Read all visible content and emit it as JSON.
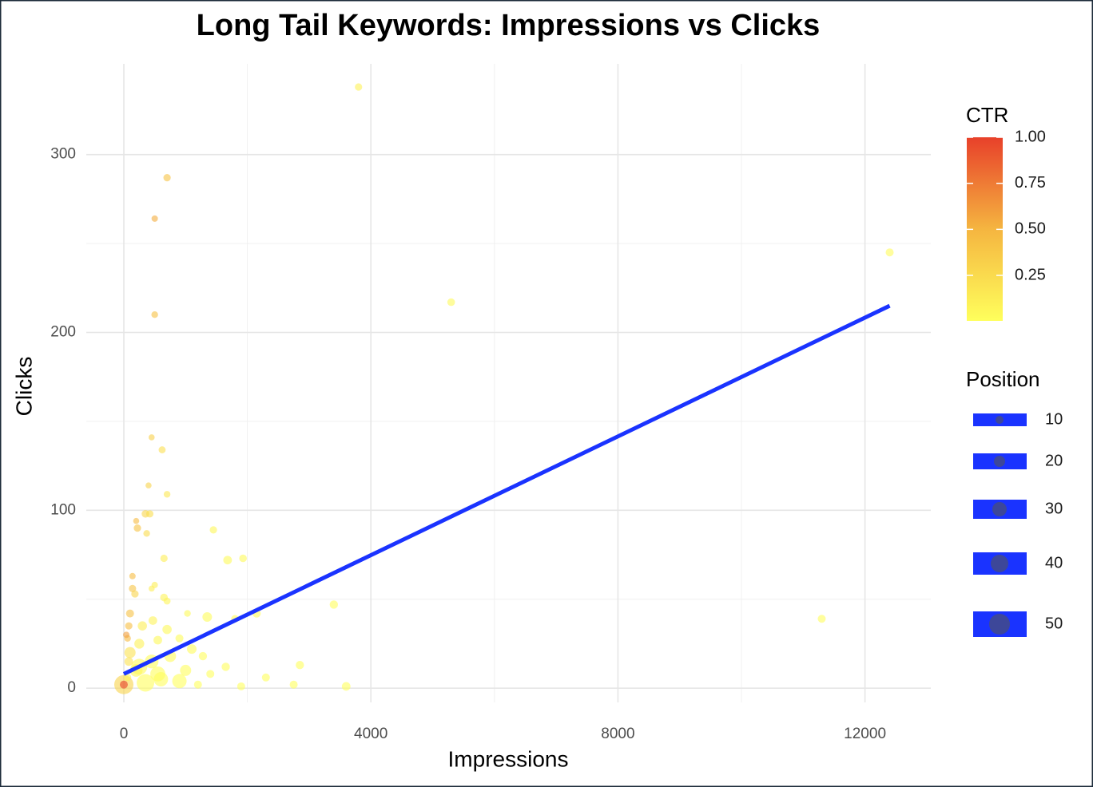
{
  "chart_data": {
    "type": "scatter",
    "title": "Long Tail Keywords: Impressions vs Clicks",
    "x_label": "Impressions",
    "y_label": "Clicks",
    "xlim": [
      -608,
      13066
    ],
    "ylim": [
      -8,
      351
    ],
    "xticks": [
      0,
      4000,
      8000,
      12000
    ],
    "yticks": [
      0,
      100,
      200,
      300
    ],
    "xminor": [
      2000,
      6000,
      10000
    ],
    "yminor": [
      50,
      150,
      250
    ],
    "grid": true,
    "x": [
      3800,
      700,
      500,
      500,
      12400,
      5300,
      11300,
      450,
      620,
      400,
      700,
      200,
      350,
      420,
      220,
      370,
      1450,
      650,
      1680,
      1930,
      140,
      500,
      450,
      140,
      180,
      650,
      700,
      3400,
      1350,
      1800,
      2150,
      1030,
      100,
      80,
      300,
      470,
      700,
      60,
      250,
      550,
      900,
      1280,
      1650,
      2850,
      2300,
      1900,
      2750,
      3600,
      1200,
      1400,
      350,
      200,
      600,
      900,
      1000,
      0,
      0,
      100,
      450,
      750,
      250,
      550,
      80,
      60,
      40,
      1100
    ],
    "series": [
      {
        "name": "Keywords",
        "values": [
          338,
          287,
          264,
          210,
          245,
          217,
          39,
          141,
          134,
          114,
          109,
          94,
          98,
          98,
          90,
          87,
          89,
          73,
          72,
          73,
          63,
          58,
          56,
          56,
          53,
          51,
          49,
          47,
          40,
          39,
          42,
          42,
          42,
          35,
          35,
          38,
          33,
          28,
          25,
          27,
          28,
          18,
          12,
          13,
          6,
          1,
          2,
          1,
          2,
          8,
          3,
          10,
          5,
          4,
          10,
          2,
          2,
          20,
          15,
          18,
          12,
          8,
          15,
          6,
          30,
          22
        ],
        "ctr": [
          0.09,
          0.41,
          0.53,
          0.42,
          0.02,
          0.04,
          0.01,
          0.31,
          0.22,
          0.29,
          0.16,
          0.47,
          0.28,
          0.23,
          0.41,
          0.24,
          0.06,
          0.11,
          0.04,
          0.04,
          0.45,
          0.12,
          0.12,
          0.4,
          0.29,
          0.08,
          0.07,
          0.01,
          0.03,
          0.02,
          0.02,
          0.04,
          0.42,
          0.44,
          0.12,
          0.08,
          0.05,
          0.47,
          0.1,
          0.05,
          0.03,
          0.014,
          0.007,
          0.005,
          0.003,
          0.003,
          0.003,
          0.003,
          0.003,
          0.006,
          0.009,
          0.05,
          0.008,
          0.004,
          0.01,
          0.3,
          1.0,
          0.2,
          0.03,
          0.024,
          0.05,
          0.015,
          0.19,
          0.1,
          0.6,
          0.02
        ],
        "position": [
          8,
          8,
          5,
          6,
          10,
          9,
          10,
          4,
          7,
          4,
          6,
          4,
          9,
          8,
          8,
          6,
          8,
          8,
          12,
          9,
          5,
          5,
          4,
          8,
          8,
          9,
          7,
          11,
          15,
          9,
          11,
          6,
          10,
          8,
          14,
          12,
          14,
          6,
          16,
          12,
          10,
          11,
          11,
          11,
          10,
          10,
          10,
          12,
          10,
          10,
          40,
          25,
          30,
          30,
          20,
          45,
          10,
          20,
          28,
          22,
          35,
          32,
          12,
          8,
          5,
          15
        ]
      }
    ],
    "trend": {
      "x": [
        0,
        12400
      ],
      "values": [
        8,
        215
      ],
      "color": "#1a33ff"
    },
    "colorbar": {
      "title": "CTR",
      "lim": [
        0.003,
        1
      ],
      "ticks": [
        0.25,
        {
          "value": 0.5,
          "label": "0.50"
        },
        0.75,
        {
          "value": 1,
          "label": "1.00"
        }
      ],
      "colors": [
        "#ffff5c",
        "#f5b540",
        "#e8402a"
      ]
    },
    "size_legend": {
      "title": "Position",
      "values": [
        10,
        20,
        30,
        40,
        50
      ],
      "color": "#1a33ff"
    }
  }
}
